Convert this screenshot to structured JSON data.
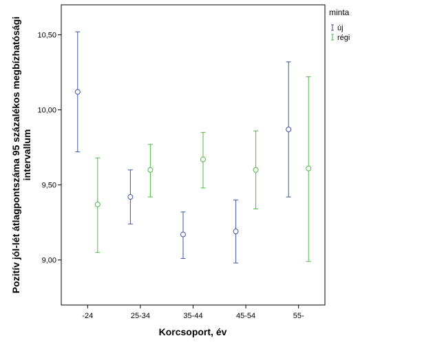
{
  "chart_data": {
    "type": "errorbar",
    "categories": [
      "-24",
      "25-34",
      "35-44",
      "45-54",
      "55-"
    ],
    "xlabel": "Korcsoport, év",
    "ylabel_lines": [
      "Pozitív jól-lét átlagpontszáma 95 százalékos megbízhatósági",
      "intervallum"
    ],
    "ylim": [
      8.7,
      10.7
    ],
    "yticks": [
      9.0,
      9.5,
      10.0,
      10.5
    ],
    "ytick_labels": [
      "9,00",
      "9,50",
      "10,00",
      "10,50"
    ],
    "grid": false,
    "legend": {
      "title": "minta",
      "position": "top-right"
    },
    "series": [
      {
        "name": "új",
        "color": "#3c54a4",
        "mean": [
          10.12,
          9.42,
          9.17,
          9.19,
          9.87
        ],
        "lower": [
          9.72,
          9.24,
          9.01,
          8.98,
          9.42
        ],
        "upper": [
          10.52,
          9.6,
          9.32,
          9.4,
          10.32
        ]
      },
      {
        "name": "régi",
        "color": "#4eb848",
        "mean": [
          9.37,
          9.6,
          9.67,
          9.6,
          9.61
        ],
        "lower": [
          9.05,
          9.42,
          9.48,
          9.34,
          8.99
        ],
        "upper": [
          9.68,
          9.77,
          9.85,
          9.86,
          10.22
        ]
      }
    ]
  }
}
